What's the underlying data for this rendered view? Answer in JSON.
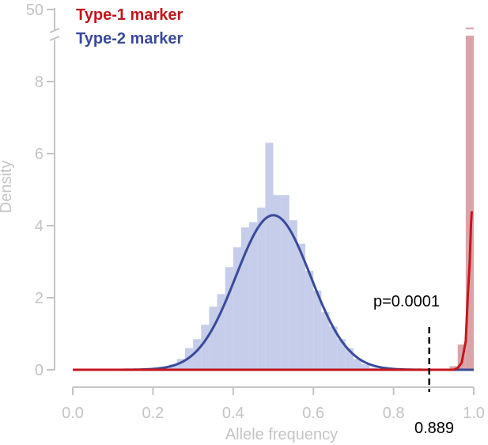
{
  "chart_data": {
    "type": "histogram",
    "xlabel": "Allele frequency",
    "ylabel": "Density",
    "xlim": [
      0.0,
      1.0
    ],
    "ylim": [
      0,
      50
    ],
    "y_axis_break": {
      "from": 9.5,
      "to": 49
    },
    "x_ticks": [
      "0.0",
      "0.2",
      "0.4",
      "0.6",
      "0.8",
      "1.0"
    ],
    "y_ticks": [
      "0",
      "2",
      "4",
      "6",
      "8",
      "50"
    ],
    "grid": false,
    "legend_position": "top-left",
    "series": [
      {
        "name": "Type-1 marker",
        "color": "#c4161c",
        "bar_color": "#d9a4a8",
        "bin_width": 0.02,
        "bins": [
          {
            "x": 0.95,
            "y": 0.1
          },
          {
            "x": 0.97,
            "y": 0.7
          },
          {
            "x": 0.99,
            "y": 48.0
          }
        ],
        "curve": [
          [
            0.0,
            0
          ],
          [
            0.95,
            0.0
          ],
          [
            0.96,
            0.05
          ],
          [
            0.97,
            0.2
          ],
          [
            0.98,
            0.8
          ],
          [
            0.985,
            2.0
          ],
          [
            0.99,
            3.0
          ],
          [
            0.993,
            4.0
          ],
          [
            0.995,
            4.4
          ]
        ]
      },
      {
        "name": "Type-2 marker",
        "color": "#3a4a9a",
        "bar_color": "#c5cdea",
        "bin_width": 0.02,
        "bins": [
          {
            "x": 0.19,
            "y": 0.02
          },
          {
            "x": 0.21,
            "y": 0.03
          },
          {
            "x": 0.23,
            "y": 0.05
          },
          {
            "x": 0.25,
            "y": 0.15
          },
          {
            "x": 0.27,
            "y": 0.3
          },
          {
            "x": 0.29,
            "y": 0.6
          },
          {
            "x": 0.31,
            "y": 0.85
          },
          {
            "x": 0.33,
            "y": 1.25
          },
          {
            "x": 0.35,
            "y": 1.75
          },
          {
            "x": 0.37,
            "y": 2.1
          },
          {
            "x": 0.39,
            "y": 2.85
          },
          {
            "x": 0.41,
            "y": 3.4
          },
          {
            "x": 0.43,
            "y": 3.95
          },
          {
            "x": 0.45,
            "y": 4.1
          },
          {
            "x": 0.47,
            "y": 4.5
          },
          {
            "x": 0.49,
            "y": 6.3
          },
          {
            "x": 0.51,
            "y": 4.85
          },
          {
            "x": 0.53,
            "y": 4.85
          },
          {
            "x": 0.55,
            "y": 4.15
          },
          {
            "x": 0.57,
            "y": 3.5
          },
          {
            "x": 0.59,
            "y": 2.75
          },
          {
            "x": 0.61,
            "y": 2.2
          },
          {
            "x": 0.63,
            "y": 1.6
          },
          {
            "x": 0.65,
            "y": 1.2
          },
          {
            "x": 0.67,
            "y": 0.85
          },
          {
            "x": 0.69,
            "y": 0.6
          },
          {
            "x": 0.71,
            "y": 0.3
          },
          {
            "x": 0.73,
            "y": 0.15
          },
          {
            "x": 0.75,
            "y": 0.05
          },
          {
            "x": 0.77,
            "y": 0.03
          }
        ],
        "curve_normal": {
          "mean": 0.5,
          "sd": 0.093,
          "xmin": 0.0,
          "xmax": 1.0
        }
      }
    ],
    "annotations": [
      {
        "type": "vline",
        "x": 0.889,
        "label": "0.889",
        "style": "dashed",
        "color": "#000000"
      },
      {
        "type": "text",
        "text": "p=0.0001"
      }
    ]
  }
}
